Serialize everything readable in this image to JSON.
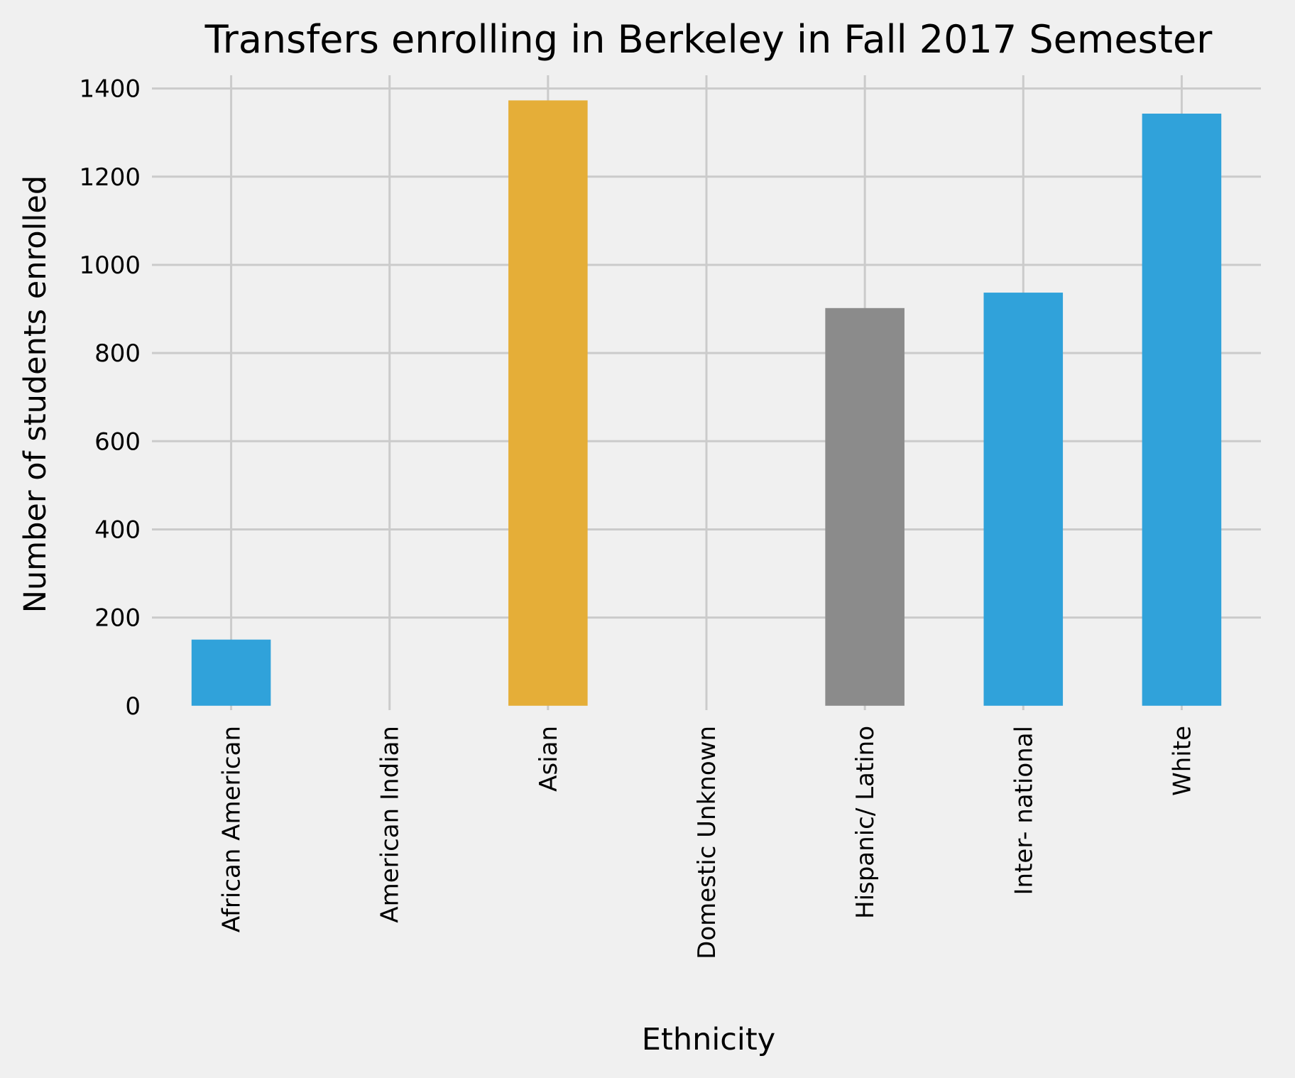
{
  "chart_data": {
    "type": "bar",
    "title": "Transfers enrolling in Berkeley in Fall 2017 Semester",
    "xlabel": "Ethnicity",
    "ylabel": "Number of students enrolled",
    "categories": [
      "African American",
      "American Indian",
      "Asian",
      "Domestic Unknown",
      "Hispanic/ Latino",
      "Inter- national",
      "White"
    ],
    "values": [
      150,
      0,
      1373,
      0,
      902,
      937,
      1343
    ],
    "bar_colors": [
      "#30a2da",
      "#30a2da",
      "#e5ae38",
      "#30a2da",
      "#8b8b8b",
      "#30a2da",
      "#30a2da"
    ],
    "yticks": [
      0,
      200,
      400,
      600,
      800,
      1000,
      1200,
      1400
    ],
    "ylim": [
      -10,
      1430
    ],
    "grid": true,
    "legend": null
  }
}
